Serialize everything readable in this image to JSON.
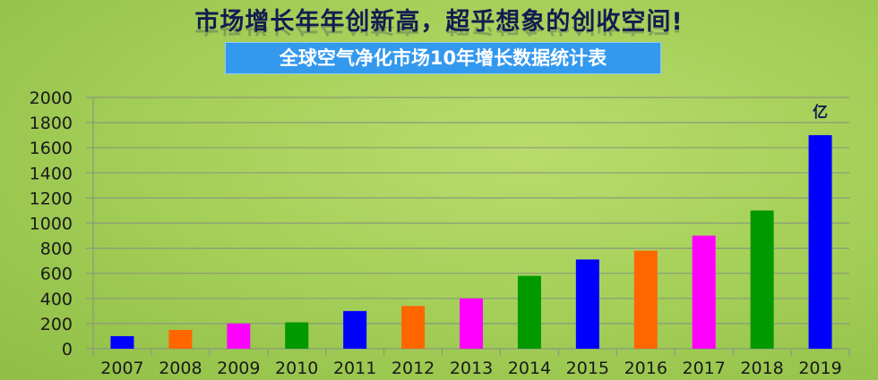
{
  "headline": "市场增长年年创新高，超乎想象的创收空间!",
  "chart_data": {
    "type": "bar",
    "title": "全球空气净化市场10年增长数据统计表",
    "unit_label": "亿",
    "categories": [
      "2007",
      "2008",
      "2009",
      "2010",
      "2011",
      "2012",
      "2013",
      "2014",
      "2015",
      "2016",
      "2017",
      "2018",
      "2019"
    ],
    "values": [
      100,
      150,
      200,
      210,
      300,
      340,
      400,
      580,
      710,
      780,
      900,
      1100,
      1700
    ],
    "colors": [
      "#0000ff",
      "#ff6600",
      "#ff00ff",
      "#009900",
      "#0000ff",
      "#ff6600",
      "#ff00ff",
      "#009900",
      "#0000ff",
      "#ff6600",
      "#ff00ff",
      "#009900",
      "#0000ff"
    ],
    "ylim": [
      0,
      2000
    ],
    "yticks": [
      0,
      200,
      400,
      600,
      800,
      1000,
      1200,
      1400,
      1600,
      1800,
      2000
    ],
    "grid": true,
    "xlabel": "",
    "ylabel": ""
  }
}
